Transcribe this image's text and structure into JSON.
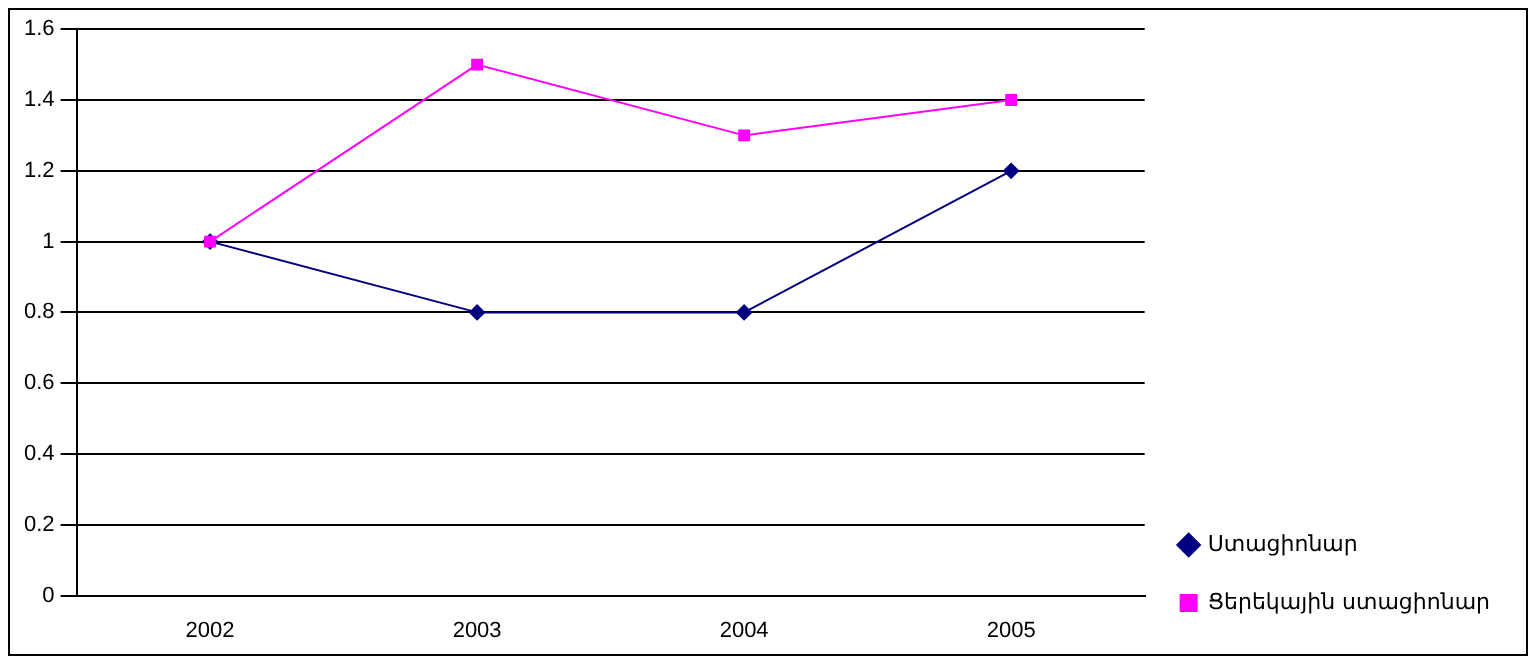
{
  "chart_data": {
    "type": "line",
    "categories": [
      "2002",
      "2003",
      "2004",
      "2005"
    ],
    "series": [
      {
        "name": "Ստացիոնար",
        "color": "#000080",
        "values": [
          1,
          0.8,
          0.8,
          1.2
        ],
        "marker": "diamond"
      },
      {
        "name": "Ցերեկային ստացիոնար",
        "color": "#ff00ff",
        "values": [
          1,
          1.5,
          1.3,
          1.4
        ],
        "marker": "square"
      }
    ],
    "ylim": [
      0,
      1.6
    ],
    "yticks": [
      0,
      0.2,
      0.4,
      0.6,
      0.8,
      1,
      1.2,
      1.4,
      1.6
    ],
    "grid": "y",
    "legend": "bottom right",
    "line_style": "solid"
  }
}
